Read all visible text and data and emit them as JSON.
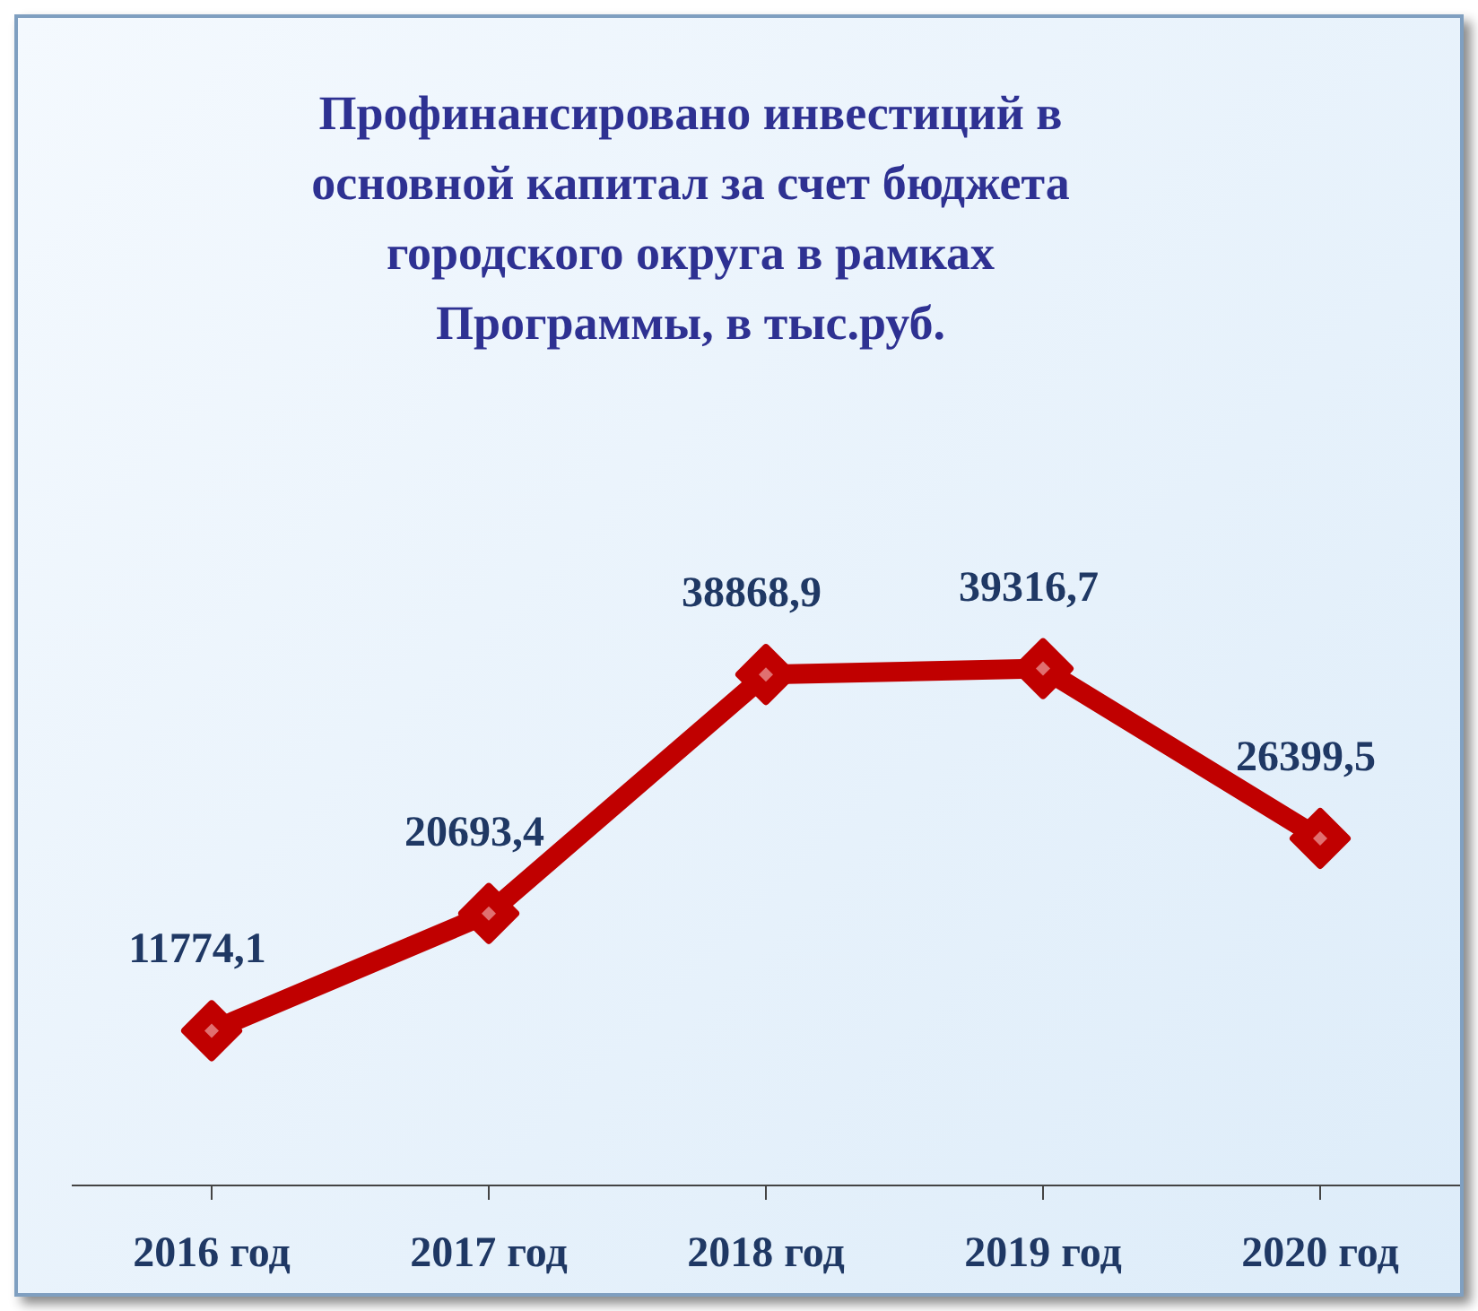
{
  "chart_data": {
    "type": "line",
    "title": "Профинансировано инвестиций в\nосновной капитал за счет бюджета\nгородского округа  в рамках\nПрограммы, в тыс.руб.",
    "categories": [
      "2016 год",
      "2017 год",
      "2018 год",
      "2019 год",
      "2020 год"
    ],
    "series": [
      {
        "color": "#c00000",
        "values": [
          11774.1,
          20693.4,
          38868.9,
          39316.7,
          26399.5
        ],
        "value_labels": [
          "11774,1",
          "20693,4",
          "38868,9",
          "39316,7",
          "26399,5"
        ]
      }
    ],
    "tick_labels": "x",
    "marker": "diamond",
    "line_style": "solid"
  }
}
